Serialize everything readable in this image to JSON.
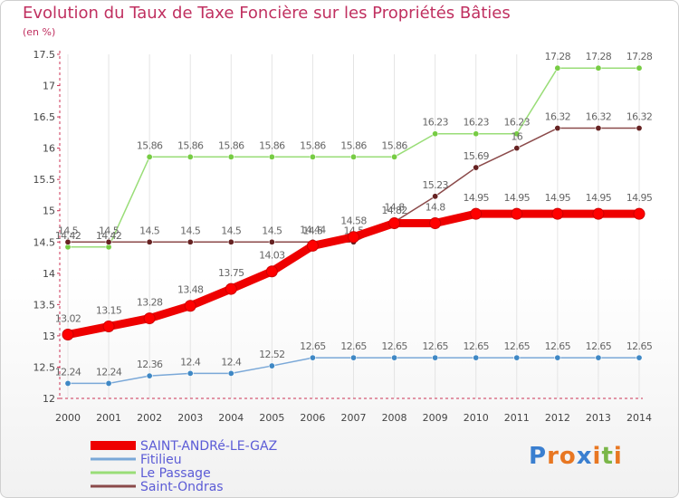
{
  "title": "Evolution du Taux de Taxe Foncière sur les Propriétés Bâties",
  "subtitle": "(en %)",
  "brand": {
    "letters": [
      "P",
      "r",
      "o",
      "x",
      "i",
      "t",
      "i"
    ],
    "colors": [
      "#3a7fd0",
      "#e87722",
      "#e87722",
      "#3a7fd0",
      "#e87722",
      "#7ab648",
      "#e87722"
    ]
  },
  "chart_data": {
    "type": "line",
    "title": "Evolution du Taux de Taxe Foncière sur les Propriétés Bâties",
    "ylabel": "(en %)",
    "xlabel": "",
    "x": [
      "2000",
      "2001",
      "2002",
      "2003",
      "2004",
      "2005",
      "2006",
      "2007",
      "2008",
      "2009",
      "2010",
      "2011",
      "2012",
      "2013",
      "2014"
    ],
    "ylim": [
      12,
      17.5
    ],
    "yticks": [
      "12",
      "12.5",
      "13",
      "13.5",
      "14",
      "14.5",
      "15",
      "15.5",
      "16",
      "16.5",
      "17",
      "17.5"
    ],
    "series": [
      {
        "name": "SAINT-ANDRé-LE-GAZ",
        "color": "#ee0000",
        "marker": "#ff0000",
        "width": "thick",
        "values": [
          13.02,
          13.15,
          13.28,
          13.48,
          13.75,
          14.03,
          14.44,
          14.58,
          14.8,
          14.8,
          14.95,
          14.95,
          14.95,
          14.95,
          14.95
        ],
        "labels": [
          "13.02",
          "13.15",
          "13.28",
          "13.48",
          "13.75",
          "14.03",
          "14.44",
          "14.58",
          "14.8",
          "14.8",
          "14.95",
          "14.95",
          "14.95",
          "14.95",
          "14.95"
        ]
      },
      {
        "name": "Fitilieu",
        "color": "#7aa8d8",
        "marker": "#3f88c5",
        "width": "thin",
        "values": [
          12.24,
          12.24,
          12.36,
          12.4,
          12.4,
          12.52,
          12.65,
          12.65,
          12.65,
          12.65,
          12.65,
          12.65,
          12.65,
          12.65,
          12.65
        ],
        "labels": [
          "12.24",
          "12.24",
          "12.36",
          "12.4",
          "12.4",
          "12.52",
          "12.65",
          "12.65",
          "12.65",
          "12.65",
          "12.65",
          "12.65",
          "12.65",
          "12.65",
          "12.65"
        ]
      },
      {
        "name": "Le Passage",
        "color": "#99dd77",
        "marker": "#77cc44",
        "width": "thin",
        "values": [
          14.42,
          14.42,
          15.86,
          15.86,
          15.86,
          15.86,
          15.86,
          15.86,
          15.86,
          16.23,
          16.23,
          16.23,
          17.28,
          17.28,
          17.28
        ],
        "labels": [
          "14.42",
          "14.42",
          "15.86",
          "15.86",
          "15.86",
          "15.86",
          "15.86",
          "15.86",
          "15.86",
          "16.23",
          "16.23",
          "16.23",
          "17.28",
          "17.28",
          "17.28"
        ]
      },
      {
        "name": "Saint-Ondras",
        "color": "#8b4a4a",
        "marker": "#662222",
        "width": "thin",
        "values": [
          14.5,
          14.5,
          14.5,
          14.5,
          14.5,
          14.5,
          14.5,
          14.5,
          14.82,
          15.23,
          15.69,
          16,
          16.32,
          16.32,
          16.32
        ],
        "labels": [
          "14.5",
          "14.5",
          "14.5",
          "14.5",
          "14.5",
          "14.5",
          "14.5",
          "14.5",
          "14.82",
          "15.23",
          "15.69",
          "16",
          "16.32",
          "16.32",
          "16.32"
        ]
      }
    ]
  }
}
